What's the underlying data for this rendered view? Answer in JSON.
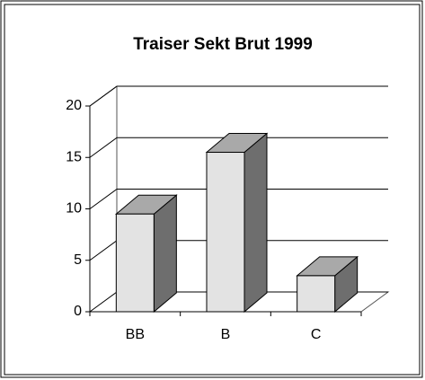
{
  "chart_data": {
    "type": "bar3d",
    "title": "Traiser Sekt Brut 1999",
    "categories": [
      "BB",
      "B",
      "C"
    ],
    "values": [
      9.5,
      15.5,
      3.5
    ],
    "colors": {
      "front": "#e3e3e3",
      "top": "#a9a9a9",
      "side": "#6e6e6e"
    },
    "ylim": [
      0,
      20
    ],
    "yticks": [
      0,
      5,
      10,
      15,
      20
    ],
    "grid": true
  }
}
